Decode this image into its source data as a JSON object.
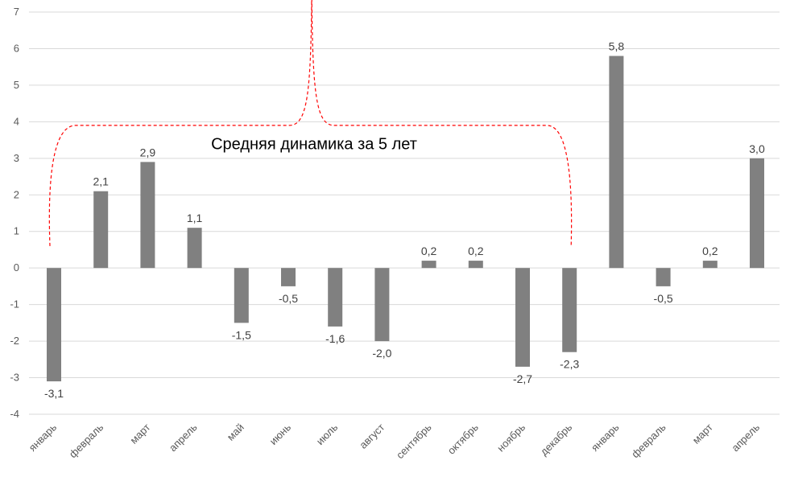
{
  "chart_data": {
    "type": "bar",
    "title": "",
    "xlabel": "",
    "ylabel": "",
    "ylim": [
      -4,
      7
    ],
    "yticks": [
      7,
      6,
      5,
      4,
      3,
      2,
      1,
      0,
      -1,
      -2,
      -3,
      -4
    ],
    "grid": true,
    "categories": [
      "январь",
      "февраль",
      "март",
      "апрель",
      "май",
      "июнь",
      "июль",
      "август",
      "сентябрь",
      "октябрь",
      "ноябрь",
      "декабрь",
      "январь",
      "февраль",
      "март",
      "апрель"
    ],
    "values": [
      -3.1,
      2.1,
      2.9,
      1.1,
      -1.5,
      -0.5,
      -1.6,
      -2.0,
      0.2,
      0.2,
      -2.7,
      -2.3,
      5.8,
      -0.5,
      0.2,
      3.0
    ],
    "value_labels": [
      "-3,1",
      "2,1",
      "2,9",
      "1,1",
      "-1,5",
      "-0,5",
      "-1,6",
      "-2,0",
      "0,2",
      "0,2",
      "-2,7",
      "-2,3",
      "5,8",
      "-0,5",
      "0,2",
      "3,0"
    ],
    "bar_color": "#808080",
    "annotation": {
      "text": "Средняя динамика за 5 лет",
      "bracket_color": "#ff0000",
      "span_from": "январь",
      "span_to": "декабрь"
    }
  }
}
